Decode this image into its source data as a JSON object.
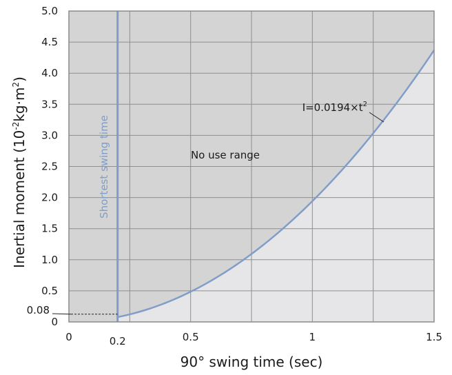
{
  "chart_data": {
    "type": "area",
    "xlabel": "90° swing time (sec)",
    "ylabel_main": "Inertial moment (10",
    "ylabel_sup1": "-2",
    "ylabel_mid": "kg·m",
    "ylabel_sup2": "2",
    "ylabel_end": ")",
    "xlim": [
      0,
      1.5
    ],
    "ylim": [
      0,
      5.0
    ],
    "x_ticks": [
      {
        "value": 0,
        "label": "0"
      },
      {
        "value": 0.2,
        "label": "0.2"
      },
      {
        "value": 0.5,
        "label": "0.5"
      },
      {
        "value": 1,
        "label": "1"
      },
      {
        "value": 1.5,
        "label": "1.5"
      }
    ],
    "y_ticks": [
      {
        "value": 0,
        "label": "0"
      },
      {
        "value": 0.5,
        "label": "0.5"
      },
      {
        "value": 1.0,
        "label": "1.0"
      },
      {
        "value": 1.5,
        "label": "1.5"
      },
      {
        "value": 2.0,
        "label": "2.0"
      },
      {
        "value": 2.5,
        "label": "2.5"
      },
      {
        "value": 3.0,
        "label": "3.0"
      },
      {
        "value": 3.5,
        "label": "3.5"
      },
      {
        "value": 4.0,
        "label": "4.0"
      },
      {
        "value": 4.5,
        "label": "4.5"
      },
      {
        "value": 5.0,
        "label": "5.0"
      }
    ],
    "x_gridlines": [
      0.25,
      0.5,
      0.75,
      1.0,
      1.25
    ],
    "grid": true,
    "curve": {
      "coefficient": 0.0194,
      "label_prefix": "I=0.0194×t",
      "label_sup": "2",
      "x": [
        0.2,
        0.3,
        0.4,
        0.5,
        0.6,
        0.7,
        0.8,
        0.9,
        1.0,
        1.1,
        1.2,
        1.3,
        1.4,
        1.5
      ],
      "y": [
        0.08,
        0.17,
        0.31,
        0.49,
        0.7,
        0.95,
        1.24,
        1.57,
        1.94,
        2.35,
        2.79,
        3.28,
        3.8,
        4.37
      ]
    },
    "shortest_swing_time": {
      "x": 0.2,
      "label": "Shortest swing time"
    },
    "marker_value": {
      "y": 0.08,
      "label": "0.08"
    },
    "region_label": "No use range",
    "colors": {
      "no_use_fill": "#d4d4d5",
      "use_fill": "#e6e6e8",
      "curve": "#7f9dc8",
      "grid": "#8e8e8e",
      "frame": "#8a8a8a",
      "label_blue": "#7f9dc8"
    }
  }
}
